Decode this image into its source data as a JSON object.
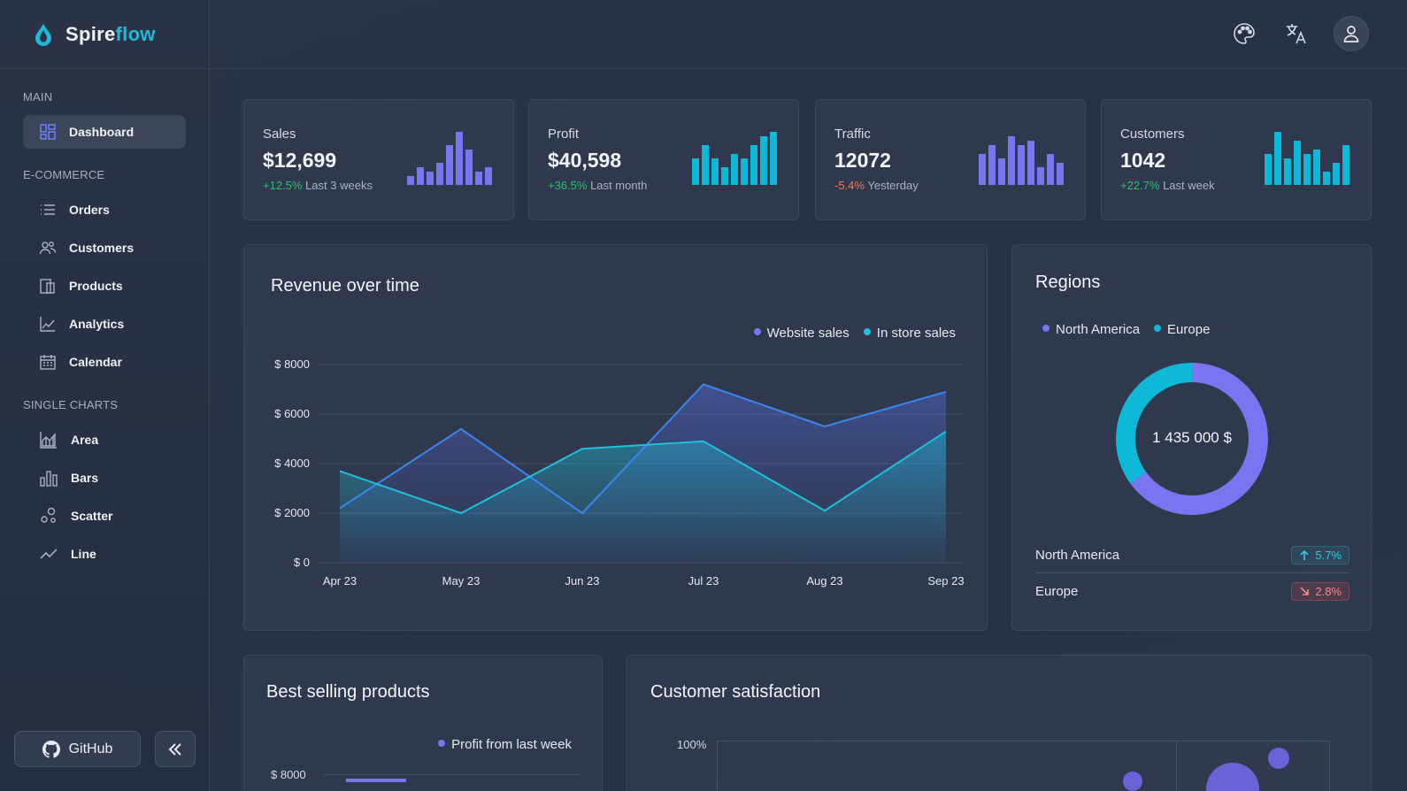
{
  "brand": {
    "part1": "Spire",
    "part2": "flow"
  },
  "sidebar": {
    "sections": [
      {
        "label": "MAIN",
        "items": [
          {
            "label": "Dashboard",
            "icon": "dashboard-icon",
            "active": true
          }
        ]
      },
      {
        "label": "E-COMMERCE",
        "items": [
          {
            "label": "Orders",
            "icon": "list-icon"
          },
          {
            "label": "Customers",
            "icon": "users-icon"
          },
          {
            "label": "Products",
            "icon": "products-icon"
          },
          {
            "label": "Analytics",
            "icon": "analytics-icon"
          },
          {
            "label": "Calendar",
            "icon": "calendar-icon"
          }
        ]
      },
      {
        "label": "SINGLE CHARTS",
        "items": [
          {
            "label": "Area",
            "icon": "area-chart-icon"
          },
          {
            "label": "Bars",
            "icon": "bar-chart-icon"
          },
          {
            "label": "Scatter",
            "icon": "scatter-icon"
          },
          {
            "label": "Line",
            "icon": "line-chart-icon"
          }
        ]
      }
    ],
    "github_label": "GitHub"
  },
  "topbar": {
    "icons": [
      "palette-icon",
      "translate-icon",
      "user-icon"
    ]
  },
  "kpis": [
    {
      "title": "Sales",
      "value": "$12,699",
      "change": "+12.5%",
      "trend": "pos",
      "period": "Last 3 weeks",
      "color": "#7c73f0",
      "bars": [
        2,
        4,
        3,
        5,
        9,
        12,
        8,
        3,
        4
      ]
    },
    {
      "title": "Profit",
      "value": "$40,598",
      "change": "+36.5%",
      "trend": "pos",
      "period": "Last month",
      "color": "#0fb8d6",
      "bars": [
        6,
        9,
        6,
        4,
        7,
        6,
        9,
        11,
        12
      ]
    },
    {
      "title": "Traffic",
      "value": "12072",
      "change": "-5.4%",
      "trend": "neg",
      "period": "Yesterday",
      "color": "#7c73f0",
      "bars": [
        7,
        9,
        6,
        11,
        9,
        10,
        4,
        7,
        5
      ]
    },
    {
      "title": "Customers",
      "value": "1042",
      "change": "+22.7%",
      "trend": "pos",
      "period": "Last week",
      "color": "#0fb8d6",
      "bars": [
        7,
        12,
        6,
        10,
        7,
        8,
        3,
        5,
        9
      ]
    }
  ],
  "revenue": {
    "title": "Revenue over time",
    "legend": [
      {
        "name": "Website sales",
        "color": "#7c73f0"
      },
      {
        "name": "In store sales",
        "color": "#1ec0dc"
      }
    ],
    "chart_data": {
      "type": "area",
      "categories": [
        "Apr 23",
        "May 23",
        "Jun 23",
        "Jul 23",
        "Aug 23",
        "Sep 23"
      ],
      "y_ticks": [
        "$ 0",
        "$ 2000",
        "$ 4000",
        "$ 6000",
        "$ 8000"
      ],
      "ylim": [
        0,
        8000
      ],
      "series": [
        {
          "name": "Website sales",
          "color": "#3a86f0",
          "values": [
            2200,
            5400,
            2000,
            7200,
            5500,
            6900
          ]
        },
        {
          "name": "In store sales",
          "color": "#1ec0dc",
          "values": [
            3700,
            2000,
            4600,
            4900,
            2100,
            5300
          ]
        }
      ]
    }
  },
  "regions": {
    "title": "Regions",
    "legend": [
      {
        "name": "North America",
        "color": "#7c73f0"
      },
      {
        "name": "Europe",
        "color": "#0fb8d6"
      }
    ],
    "total": "1 435 000 $",
    "chart_data": {
      "type": "pie",
      "labels": [
        "North America",
        "Europe"
      ],
      "values": [
        65,
        35
      ]
    },
    "rows": [
      {
        "name": "North America",
        "change": "5.7%",
        "dir": "up"
      },
      {
        "name": "Europe",
        "change": "2.8%",
        "dir": "down"
      }
    ]
  },
  "best_selling": {
    "title": "Best selling products",
    "legend": [
      {
        "name": "Profit from last week",
        "color": "#7c73f0"
      }
    ],
    "y_top": "$ 8000"
  },
  "satisfaction": {
    "title": "Customer satisfaction",
    "y_top": "100%"
  }
}
